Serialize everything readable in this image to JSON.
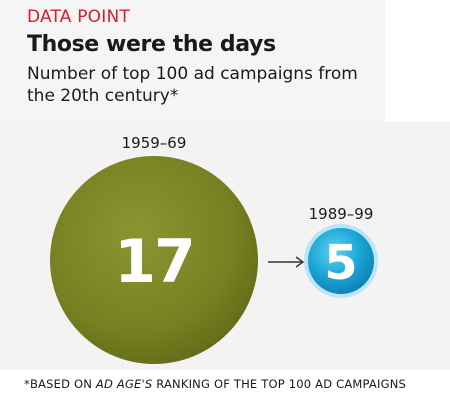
{
  "header": {
    "kicker": "DATA POINT",
    "title": "Those were the days",
    "subtitle": "Number of top 100 ad campaigns from the 20th century*"
  },
  "chart_data": {
    "type": "bubble",
    "title": "Those were the days",
    "subtitle": "Number of top 100 ad campaigns from the 20th century*",
    "categories": [
      "1959–69",
      "1989–99"
    ],
    "values": [
      17,
      5
    ],
    "colors": [
      "#7a8224",
      "#1ba6d6"
    ]
  },
  "footnote": {
    "prefix": "*BASED ON ",
    "source": "AD AGE'S",
    "suffix": " RANKING OF THE TOP 100 AD CAMPAIGNS"
  },
  "colors": {
    "kicker": "#d21e2b",
    "title": "#111111",
    "arrow": "#333333"
  },
  "icons": {
    "arrow": "arrow-right-icon"
  }
}
